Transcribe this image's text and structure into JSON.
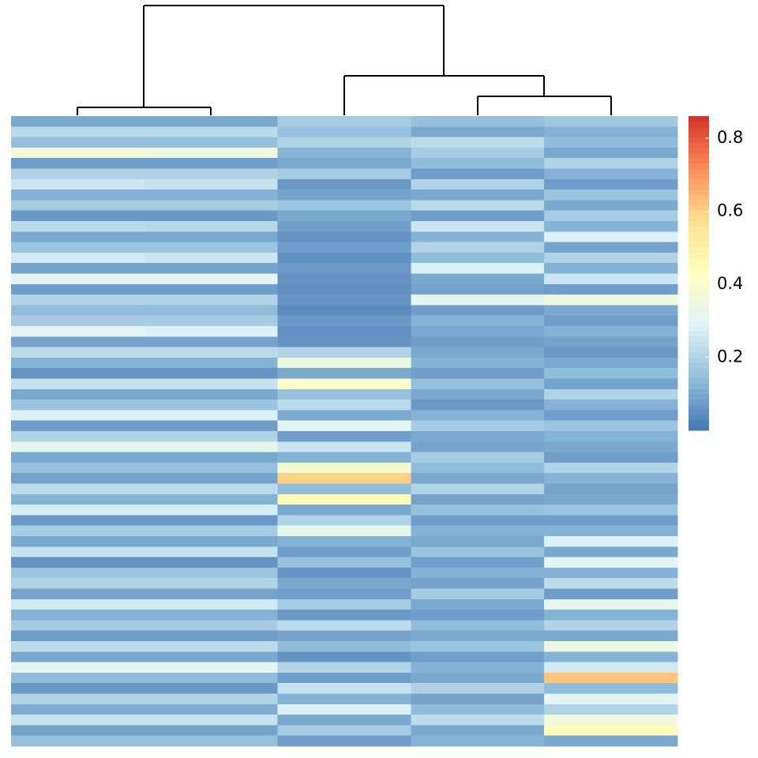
{
  "chart_data": {
    "type": "heatmap",
    "zlim": [
      0,
      0.86
    ],
    "zticks": [
      0.2,
      0.4,
      0.6,
      0.8
    ],
    "colors": [
      "#4575b4",
      "#91bfdb",
      "#e0f3f8",
      "#ffffbf",
      "#fee090",
      "#fc8d59",
      "#d73027"
    ],
    "values": [
      [
        0.1,
        0.1,
        0.18,
        0.15,
        0.17
      ],
      [
        0.22,
        0.22,
        0.15,
        0.1,
        0.12
      ],
      [
        0.15,
        0.15,
        0.2,
        0.22,
        0.14
      ],
      [
        0.38,
        0.36,
        0.12,
        0.18,
        0.1
      ],
      [
        0.08,
        0.08,
        0.1,
        0.14,
        0.2
      ],
      [
        0.2,
        0.2,
        0.18,
        0.08,
        0.12
      ],
      [
        0.25,
        0.24,
        0.07,
        0.2,
        0.08
      ],
      [
        0.12,
        0.12,
        0.09,
        0.1,
        0.16
      ],
      [
        0.18,
        0.18,
        0.16,
        0.22,
        0.1
      ],
      [
        0.07,
        0.07,
        0.1,
        0.08,
        0.18
      ],
      [
        0.22,
        0.21,
        0.08,
        0.25,
        0.12
      ],
      [
        0.1,
        0.1,
        0.06,
        0.12,
        0.28
      ],
      [
        0.16,
        0.16,
        0.08,
        0.2,
        0.09
      ],
      [
        0.26,
        0.25,
        0.05,
        0.14,
        0.2
      ],
      [
        0.09,
        0.09,
        0.07,
        0.28,
        0.12
      ],
      [
        0.3,
        0.3,
        0.06,
        0.1,
        0.25
      ],
      [
        0.08,
        0.08,
        0.05,
        0.09,
        0.08
      ],
      [
        0.2,
        0.2,
        0.06,
        0.3,
        0.35
      ],
      [
        0.14,
        0.14,
        0.04,
        0.08,
        0.1
      ],
      [
        0.18,
        0.18,
        0.07,
        0.12,
        0.08
      ],
      [
        0.3,
        0.28,
        0.05,
        0.1,
        0.12
      ],
      [
        0.09,
        0.09,
        0.06,
        0.08,
        0.09
      ],
      [
        0.22,
        0.22,
        0.2,
        0.1,
        0.07
      ],
      [
        0.12,
        0.12,
        0.35,
        0.12,
        0.1
      ],
      [
        0.06,
        0.06,
        0.1,
        0.08,
        0.14
      ],
      [
        0.24,
        0.24,
        0.4,
        0.15,
        0.09
      ],
      [
        0.1,
        0.1,
        0.15,
        0.1,
        0.2
      ],
      [
        0.16,
        0.16,
        0.22,
        0.07,
        0.12
      ],
      [
        0.28,
        0.28,
        0.1,
        0.12,
        0.08
      ],
      [
        0.08,
        0.08,
        0.3,
        0.18,
        0.16
      ],
      [
        0.2,
        0.2,
        0.08,
        0.1,
        0.12
      ],
      [
        0.32,
        0.32,
        0.25,
        0.09,
        0.1
      ],
      [
        0.1,
        0.1,
        0.12,
        0.18,
        0.08
      ],
      [
        0.15,
        0.15,
        0.38,
        0.14,
        0.2
      ],
      [
        0.09,
        0.09,
        0.6,
        0.1,
        0.12
      ],
      [
        0.22,
        0.22,
        0.14,
        0.2,
        0.09
      ],
      [
        0.12,
        0.12,
        0.45,
        0.09,
        0.1
      ],
      [
        0.27,
        0.27,
        0.1,
        0.15,
        0.16
      ],
      [
        0.07,
        0.07,
        0.2,
        0.08,
        0.08
      ],
      [
        0.18,
        0.18,
        0.32,
        0.12,
        0.12
      ],
      [
        0.1,
        0.1,
        0.12,
        0.1,
        0.28
      ],
      [
        0.24,
        0.24,
        0.08,
        0.16,
        0.1
      ],
      [
        0.06,
        0.06,
        0.15,
        0.08,
        0.3
      ],
      [
        0.16,
        0.16,
        0.06,
        0.12,
        0.12
      ],
      [
        0.2,
        0.2,
        0.1,
        0.09,
        0.22
      ],
      [
        0.09,
        0.09,
        0.08,
        0.18,
        0.08
      ],
      [
        0.26,
        0.26,
        0.18,
        0.1,
        0.32
      ],
      [
        0.12,
        0.12,
        0.07,
        0.08,
        0.12
      ],
      [
        0.18,
        0.18,
        0.22,
        0.14,
        0.2
      ],
      [
        0.08,
        0.08,
        0.09,
        0.1,
        0.1
      ],
      [
        0.22,
        0.22,
        0.14,
        0.16,
        0.34
      ],
      [
        0.1,
        0.1,
        0.06,
        0.08,
        0.12
      ],
      [
        0.3,
        0.3,
        0.2,
        0.12,
        0.26
      ],
      [
        0.14,
        0.14,
        0.08,
        0.1,
        0.62
      ],
      [
        0.07,
        0.07,
        0.24,
        0.2,
        0.14
      ],
      [
        0.2,
        0.2,
        0.12,
        0.09,
        0.3
      ],
      [
        0.11,
        0.11,
        0.28,
        0.14,
        0.2
      ],
      [
        0.24,
        0.24,
        0.1,
        0.22,
        0.36
      ],
      [
        0.09,
        0.09,
        0.18,
        0.1,
        0.45
      ],
      [
        0.15,
        0.15,
        0.08,
        0.12,
        0.1
      ]
    ]
  }
}
